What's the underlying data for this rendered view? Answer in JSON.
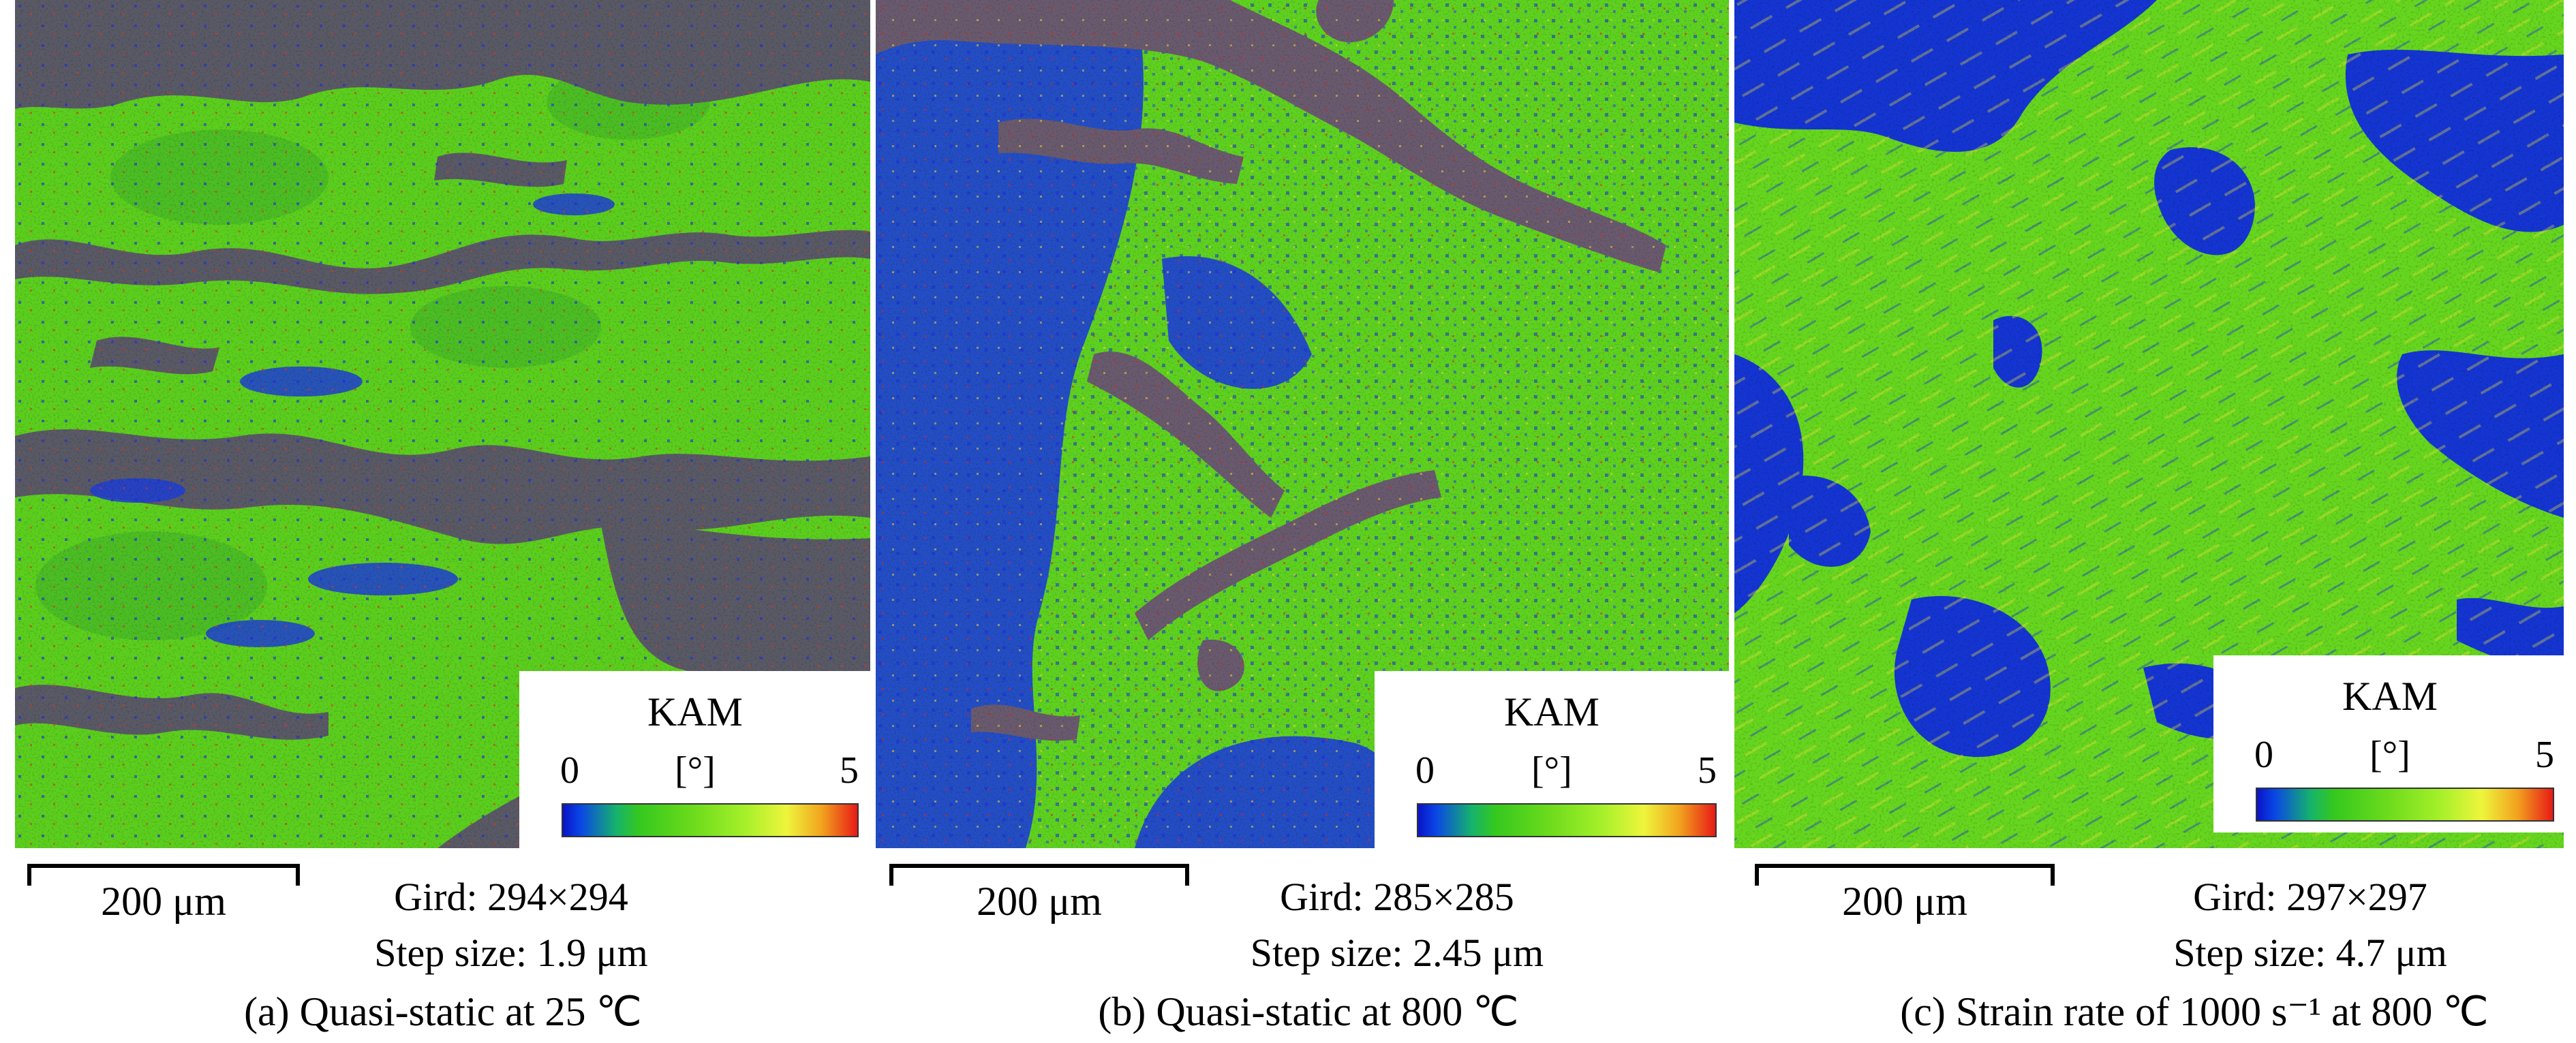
{
  "panels": [
    {
      "legend": {
        "title": "KAM",
        "min": "0",
        "max": "5",
        "unit": "[°]"
      },
      "scale_bar": "200 μm",
      "grid": "Gird: 294×294",
      "step": "Step size: 1.9 μm",
      "caption": "(a) Quasi-static at 25 ℃"
    },
    {
      "legend": {
        "title": "KAM",
        "min": "0",
        "max": "5",
        "unit": "[°]"
      },
      "scale_bar": "200 μm",
      "grid": "Gird: 285×285",
      "step": "Step size: 2.45 μm",
      "caption": "(b) Quasi-static at 800 ℃"
    },
    {
      "legend": {
        "title": "KAM",
        "min": "0",
        "max": "5",
        "unit": "[°]"
      },
      "scale_bar": "200 μm",
      "grid": "Gird: 297×297",
      "step": "Step size: 4.7 μm",
      "caption": "(c) Strain rate of 1000 s⁻¹ at 800 ℃"
    }
  ],
  "colors": {
    "unindexed": "#5a5a66",
    "low": "#0a28d2",
    "mid": "#5cd61a",
    "high": "#e81a16"
  }
}
